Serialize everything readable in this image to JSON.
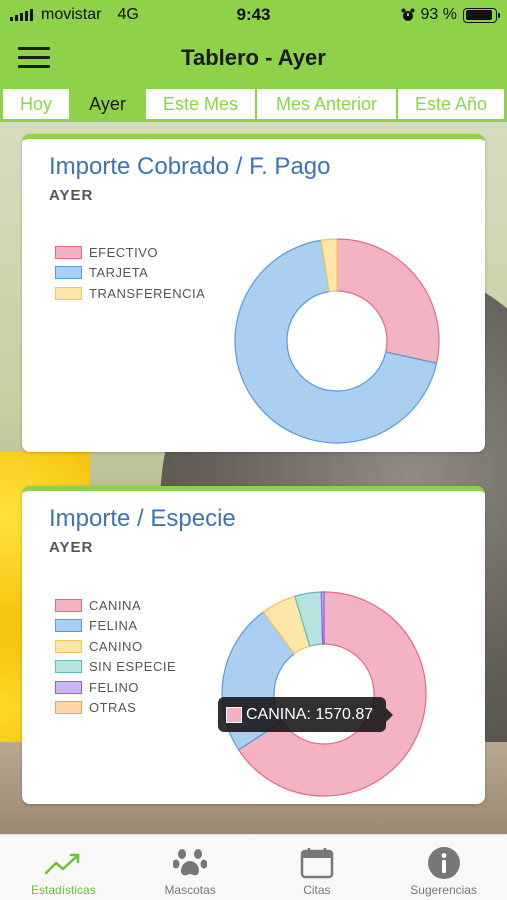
{
  "status_bar": {
    "carrier": "movistar",
    "network": "4G",
    "time": "9:43",
    "battery": "93 %"
  },
  "header": {
    "title": "Tablero - Ayer"
  },
  "tabs": [
    {
      "label": "Hoy",
      "active": false
    },
    {
      "label": "Ayer",
      "active": true
    },
    {
      "label": "Este Mes",
      "active": false
    },
    {
      "label": "Mes Anterior",
      "active": false
    },
    {
      "label": "Este Año",
      "active": false
    }
  ],
  "cards": [
    {
      "title": "Importe Cobrado / F. Pago",
      "subtitle": "AYER",
      "legend": [
        "EFECTIVO",
        "TARJETA",
        "TRANSFERENCIA"
      ]
    },
    {
      "title": "Importe / Especie",
      "subtitle": "AYER",
      "legend": [
        "CANINA",
        "FELINA",
        "CANINO",
        "SIN ESPECIE",
        "FELINO",
        "OTRAS"
      ],
      "tooltip": "CANINA: 1570.87"
    }
  ],
  "chart_data": [
    {
      "type": "pie",
      "title": "Importe Cobrado / F. Pago",
      "categories": [
        "EFECTIVO",
        "TARJETA",
        "TRANSFERENCIA"
      ],
      "values": [
        28.5,
        69,
        2.5
      ],
      "colors": [
        "#f4b3c2",
        "#aacff0",
        "#fde6a8"
      ],
      "legend_position": "left"
    },
    {
      "type": "pie",
      "title": "Importe / Especie",
      "categories": [
        "CANINA",
        "FELINA",
        "CANINO",
        "SIN ESPECIE",
        "FELINO",
        "OTRAS"
      ],
      "values": [
        1570.87,
        575,
        132,
        100,
        10,
        0
      ],
      "colors": [
        "#f4b3c2",
        "#aacff0",
        "#fde6a8",
        "#b5e3e0",
        "#c9b6f5",
        "#fcd5a8"
      ],
      "legend_position": "left"
    }
  ],
  "bottom_nav": [
    {
      "label": "Estadísticas",
      "icon": "chart-line-icon",
      "active": true
    },
    {
      "label": "Mascotas",
      "icon": "paw-icon",
      "active": false
    },
    {
      "label": "Citas",
      "icon": "calendar-icon",
      "active": false
    },
    {
      "label": "Sugerencias",
      "icon": "info-icon",
      "active": false
    }
  ]
}
